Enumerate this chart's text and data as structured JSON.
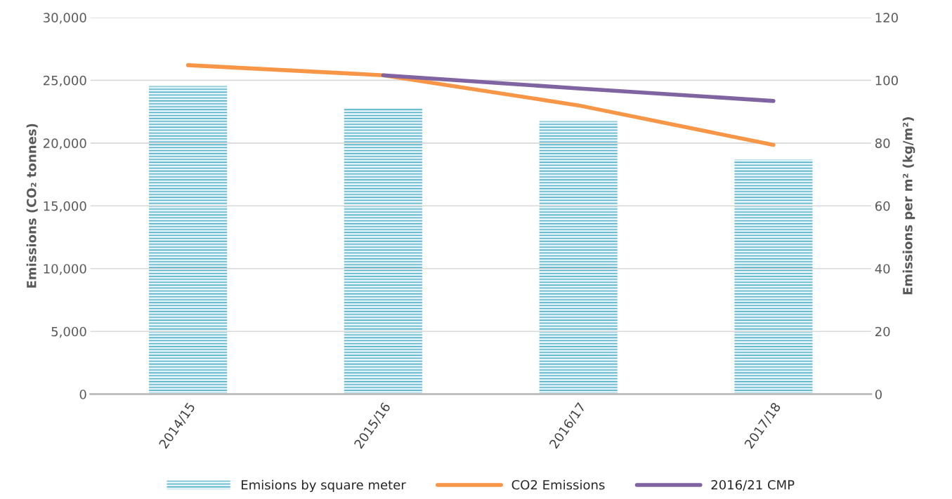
{
  "chart_data": {
    "type": "bar",
    "categories": [
      "2014/15",
      "2015/16",
      "2016/17",
      "2017/18"
    ],
    "ylabel": "Emissions (CO₂ tonnes)",
    "y2label": "Emissions per m² (kg/m²)",
    "series": [
      {
        "name": "Emisions by square meter",
        "axis": "y2",
        "color": "#4bacc6",
        "values": [
          98.2,
          91.2,
          87,
          74.7
        ]
      },
      {
        "name": "CO2 Emissions",
        "type": "line",
        "color": "#f79646",
        "values": [
          26200,
          25400,
          23000,
          19850
        ]
      },
      {
        "name": "2016/21 CMP",
        "type": "line",
        "color": "#8064a2",
        "values": [
          null,
          25400,
          24350,
          23350
        ]
      }
    ],
    "ylim": [
      0,
      30000
    ],
    "yticks": [
      {
        "value": 0,
        "label": "0"
      },
      {
        "value": 5000,
        "label": "5,000"
      },
      {
        "value": 10000,
        "label": "10,000"
      },
      {
        "value": 15000,
        "label": "15,000"
      },
      {
        "value": 20000,
        "label": "20,000"
      },
      {
        "value": 25000,
        "label": "25,000"
      },
      {
        "value": 30000,
        "label": "30,000"
      }
    ],
    "y2lim": [
      0,
      120
    ],
    "y2ticks": [
      0,
      20,
      40,
      60,
      80,
      100,
      120
    ],
    "grid": "y",
    "legend": "bottom",
    "marker": "none",
    "line_style": "solid"
  }
}
